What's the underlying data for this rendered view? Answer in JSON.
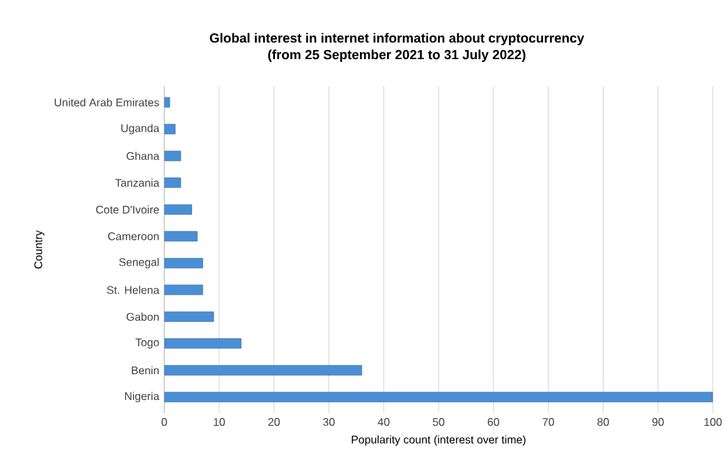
{
  "chart_data": {
    "type": "bar",
    "orientation": "horizontal",
    "title": "Global interest in internet information about cryptocurrency\n(from 25 September 2021 to 31 July 2022)",
    "xlabel": "Popularity count (interest over time)",
    "ylabel": "Country",
    "categories": [
      "United Arab Emirates",
      "Uganda",
      "Ghana",
      "Tanzania",
      "Cote D'Ivoire",
      "Cameroon",
      "Senegal",
      "St. Helena",
      "Gabon",
      "Togo",
      "Benin",
      "Nigeria"
    ],
    "values": [
      1,
      2,
      3,
      3,
      5,
      6,
      7,
      7,
      9,
      14,
      36,
      100
    ],
    "color": "#4a8fd6",
    "xlim": [
      0,
      100
    ],
    "xticks": [
      0,
      10,
      20,
      30,
      40,
      50,
      60,
      70,
      80,
      90,
      100
    ],
    "grid": "x"
  }
}
